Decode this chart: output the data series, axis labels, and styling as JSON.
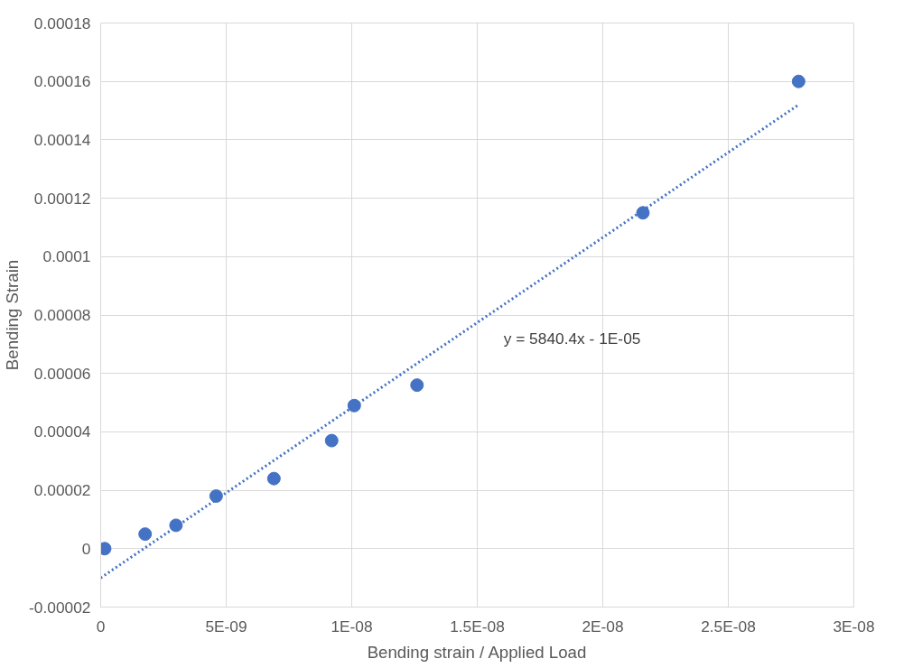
{
  "chart_data": {
    "type": "scatter",
    "xlabel": "Bending strain / Applied Load",
    "ylabel": "Bending Strain",
    "xlim": [
      0,
      3e-08
    ],
    "ylim": [
      -2e-05,
      0.00018
    ],
    "xticks": [
      {
        "value": 0,
        "label": "0"
      },
      {
        "value": 5e-09,
        "label": "5E-09"
      },
      {
        "value": 1e-08,
        "label": "1E-08"
      },
      {
        "value": 1.5e-08,
        "label": "1.5E-08"
      },
      {
        "value": 2e-08,
        "label": "2E-08"
      },
      {
        "value": 2.5e-08,
        "label": "2.5E-08"
      },
      {
        "value": 3e-08,
        "label": "3E-08"
      }
    ],
    "yticks": [
      {
        "value": -2e-05,
        "label": "-0.00002"
      },
      {
        "value": 0,
        "label": "0"
      },
      {
        "value": 2e-05,
        "label": "0.00002"
      },
      {
        "value": 4e-05,
        "label": "0.00004"
      },
      {
        "value": 6e-05,
        "label": "0.00006"
      },
      {
        "value": 8e-05,
        "label": "0.00008"
      },
      {
        "value": 0.0001,
        "label": "0.0001"
      },
      {
        "value": 0.00012,
        "label": "0.00012"
      },
      {
        "value": 0.00014,
        "label": "0.00014"
      },
      {
        "value": 0.00016,
        "label": "0.00016"
      },
      {
        "value": 0.00018,
        "label": "0.00018"
      }
    ],
    "grid": true,
    "series": [
      {
        "color": "#4472c4",
        "marker": "circle",
        "x": [
          1.6e-10,
          1.77e-09,
          3e-09,
          4.6e-09,
          6.9e-09,
          9.2e-09,
          1.01e-08,
          1.26e-08,
          2.16e-08,
          2.78e-08
        ],
        "values": [
          0,
          5e-06,
          8e-06,
          1.8e-05,
          2.4e-05,
          3.7e-05,
          4.9e-05,
          5.6e-05,
          0.000115,
          0.00016
        ]
      },
      {
        "type": "line",
        "color": "#4472c4",
        "line_style": "dotted",
        "x": [
          0,
          2.78e-08
        ],
        "values": [
          -1e-05,
          0.000152
        ]
      }
    ],
    "annotations": [
      "y = 5840.4x - 1E-05"
    ]
  }
}
